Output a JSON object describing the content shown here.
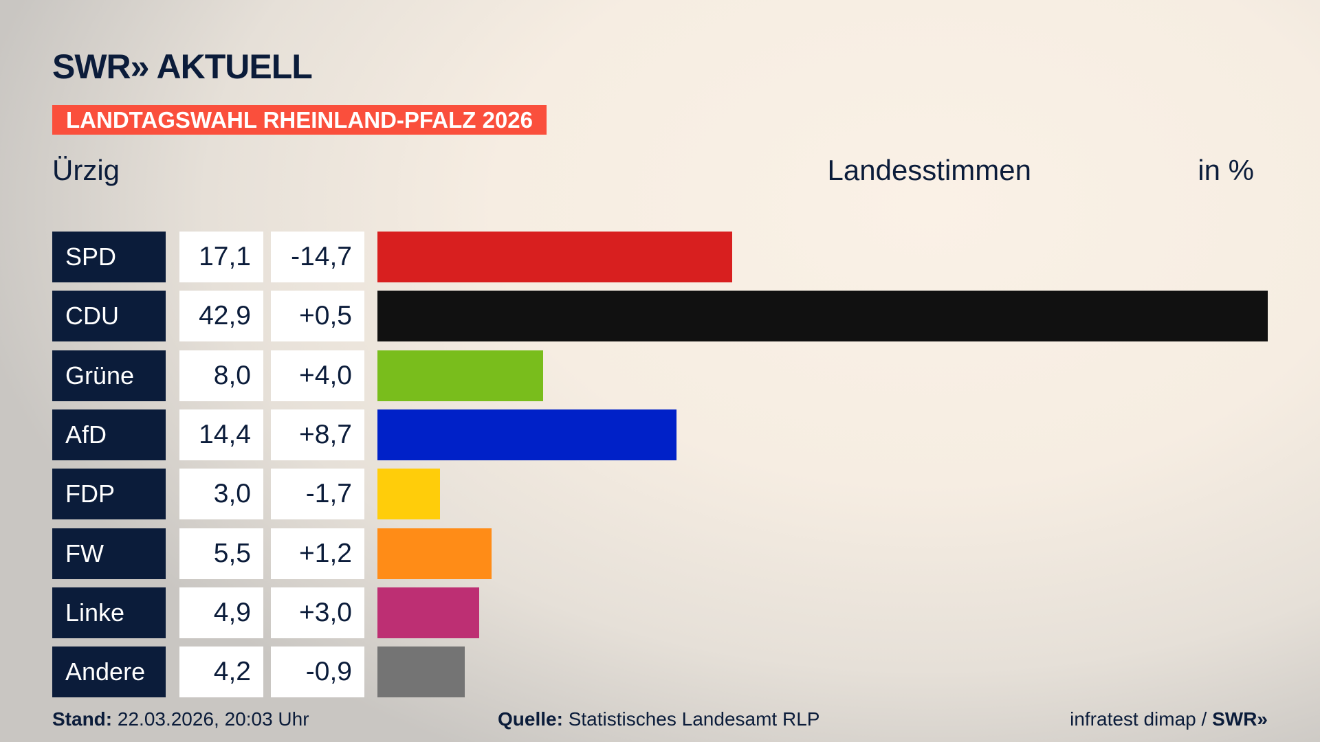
{
  "header": {
    "logo": "SWR» AKTUELL",
    "banner": "LANDTAGSWAHL RHEINLAND-PFALZ 2026",
    "location": "Ürzig",
    "measure": "Landesstimmen",
    "unit": "in %"
  },
  "chart_data": {
    "type": "bar",
    "orientation": "horizontal",
    "categories": [
      "SPD",
      "CDU",
      "Grüne",
      "AfD",
      "FDP",
      "FW",
      "Linke",
      "Andere"
    ],
    "values": [
      17.1,
      42.9,
      8.0,
      14.4,
      3.0,
      5.5,
      4.9,
      4.2
    ],
    "value_labels": [
      "17,1",
      "42,9",
      "8,0",
      "14,4",
      "3,0",
      "5,5",
      "4,9",
      "4,2"
    ],
    "change_labels": [
      "-14,7",
      "+0,5",
      "+4,0",
      "+8,7",
      "-1,7",
      "+1,2",
      "+3,0",
      "-0,9"
    ],
    "changes": [
      -14.7,
      0.5,
      4.0,
      8.7,
      -1.7,
      1.2,
      3.0,
      -0.9
    ],
    "colors": [
      "#d81f1f",
      "#111111",
      "#79bd1c",
      "#0021c8",
      "#ffcd0a",
      "#ff8c17",
      "#bd2f73",
      "#747474"
    ]
  },
  "footer": {
    "stand_label": "Stand:",
    "stand": "22.03.2026, 20:03 Uhr",
    "source_label": "Quelle:",
    "source": "Statistisches Landesamt RLP",
    "credit": "infratest dimap /",
    "credit_logo": "SWR»"
  }
}
